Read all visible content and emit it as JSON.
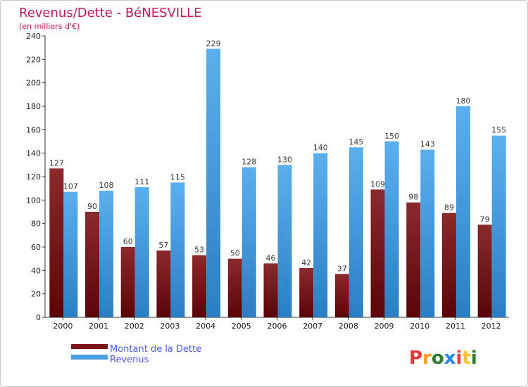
{
  "chart_data": {
    "type": "bar",
    "title": "Revenus/Dette - BéNESVILLE",
    "subtitle": "(en milliers d'€)",
    "categories": [
      "2000",
      "2001",
      "2002",
      "2003",
      "2004",
      "2005",
      "2006",
      "2007",
      "2008",
      "2009",
      "2010",
      "2011",
      "2012"
    ],
    "series": [
      {
        "name": "Montant de la Dette",
        "color": "#7a1518",
        "values": [
          127,
          90,
          60,
          57,
          53,
          50,
          46,
          42,
          37,
          109,
          98,
          89,
          79
        ]
      },
      {
        "name": "Revenus",
        "color": "#4a9fe0",
        "values": [
          107,
          108,
          111,
          115,
          229,
          128,
          130,
          140,
          145,
          150,
          143,
          180,
          155
        ]
      }
    ],
    "ylim": [
      0,
      240
    ],
    "yticks": [
      0,
      20,
      40,
      60,
      80,
      100,
      120,
      140,
      160,
      180,
      200,
      220,
      240
    ],
    "grid": false,
    "legend_position": "bottom-left"
  },
  "logo": {
    "letters": [
      "P",
      "r",
      "o",
      "x",
      "i",
      "t",
      "i"
    ],
    "colors": [
      "#e53935",
      "#f39c12",
      "#2e7d32",
      "#1e88e5",
      "#e53935",
      "#fbc02d",
      "#2e7d32"
    ]
  }
}
